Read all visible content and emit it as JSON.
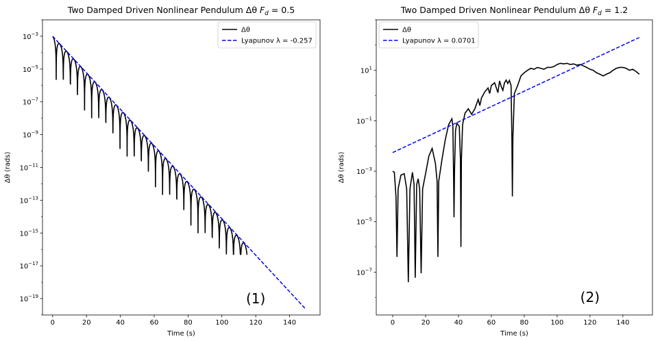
{
  "chart_data": [
    {
      "type": "line",
      "title": "Two Damped Driven Nonlinear Pendulum Δθ F_d = 0.5",
      "title_parts": {
        "main": "Two Damped Driven Nonlinear Pendulum Δθ ",
        "var": "F",
        "sub": "d",
        "rest": " = 0.5"
      },
      "xlabel": "Time (s)",
      "ylabel": "Δθ (rads)",
      "yscale": "log",
      "xlim": [
        -6,
        158
      ],
      "ylim": [
        1e-20,
        0.01
      ],
      "xticks": [
        0,
        20,
        40,
        60,
        80,
        100,
        120,
        140
      ],
      "yticks_exp": [
        -3,
        -5,
        -7,
        -9,
        -11,
        -13,
        -15,
        -17,
        -19
      ],
      "grid": false,
      "legend_position": "top-right",
      "panel_label": "(1)",
      "series": [
        {
          "name": "Δθ",
          "color": "#000000",
          "style": "solid",
          "kind": "damped",
          "start": [
            0,
            0.001
          ],
          "lyap": -0.257,
          "period": 4.19,
          "end_x": 115,
          "floor": 5e-17
        },
        {
          "name": "Lyapunov λ = -0.257",
          "color": "#0000ff",
          "style": "dashed",
          "x": [
            0,
            149
          ],
          "y": [
            0.001,
            2.6e-20
          ]
        }
      ]
    },
    {
      "type": "line",
      "title": "Two Damped Driven Nonlinear Pendulum Δθ F_d = 1.2",
      "title_parts": {
        "main": "Two Damped Driven Nonlinear Pendulum Δθ ",
        "var": "F",
        "sub": "d",
        "rest": " = 1.2"
      },
      "xlabel": "Time (s)",
      "ylabel": "Δθ (rads)",
      "yscale": "log",
      "xlim": [
        -10,
        158
      ],
      "ylim": [
        2e-09,
        1000
      ],
      "xticks": [
        0,
        20,
        40,
        60,
        80,
        100,
        120,
        140
      ],
      "yticks_exp": [
        1,
        -1,
        -3,
        -5,
        -7
      ],
      "grid": false,
      "legend_position": "top-left",
      "panel_label": "(2)",
      "series": [
        {
          "name": "Δθ",
          "color": "#000000",
          "style": "solid",
          "kind": "points",
          "points": [
            [
              0,
              0.001
            ],
            [
              1,
              0.0009
            ],
            [
              2,
              0.0001
            ],
            [
              2.6,
              4e-07
            ],
            [
              3.3,
              0.0002
            ],
            [
              5,
              0.0007
            ],
            [
              7,
              0.0008
            ],
            [
              8.5,
              0.0002
            ],
            [
              9.5,
              4e-08
            ],
            [
              10.5,
              0.0002
            ],
            [
              12,
              0.0009
            ],
            [
              13,
              0.0003
            ],
            [
              13.7,
              6e-08
            ],
            [
              14.6,
              0.0003
            ],
            [
              15.5,
              0.0005
            ],
            [
              16.4,
              0.0002
            ],
            [
              17.3,
              9e-08
            ],
            [
              18.2,
              0.0002
            ],
            [
              20,
              0.0008
            ],
            [
              22,
              0.004
            ],
            [
              24,
              0.008
            ],
            [
              26,
              0.002
            ],
            [
              27,
              0.0004
            ],
            [
              27.5,
              4e-07
            ],
            [
              28,
              0.0004
            ],
            [
              30,
              0.003
            ],
            [
              32,
              0.018
            ],
            [
              34,
              0.07
            ],
            [
              36,
              0.12
            ],
            [
              36.6,
              0.06
            ],
            [
              37,
              0.001
            ],
            [
              37.3,
              1.5e-05
            ],
            [
              37.6,
              0.001
            ],
            [
              38.2,
              0.04
            ],
            [
              39,
              0.08
            ],
            [
              40.5,
              0.06
            ],
            [
              41.2,
              0.003
            ],
            [
              41.5,
              1e-06
            ],
            [
              41.8,
              0.003
            ],
            [
              42.5,
              0.07
            ],
            [
              44,
              0.2
            ],
            [
              46,
              0.3
            ],
            [
              48,
              0.18
            ],
            [
              50,
              0.3
            ],
            [
              52,
              0.7
            ],
            [
              53,
              0.4
            ],
            [
              54,
              0.8
            ],
            [
              56,
              1.4
            ],
            [
              58,
              2
            ],
            [
              59,
              1.2
            ],
            [
              60,
              2.5
            ],
            [
              62,
              3.2
            ],
            [
              64,
              1.3
            ],
            [
              65,
              3.8
            ],
            [
              66,
              2.3
            ],
            [
              67,
              1.6
            ],
            [
              68,
              3.2
            ],
            [
              69,
              4.1
            ],
            [
              70,
              3
            ],
            [
              71,
              4
            ],
            [
              72,
              2.5
            ],
            [
              72.5,
              0.02
            ],
            [
              72.8,
              0.0001
            ],
            [
              73.1,
              0.02
            ],
            [
              74,
              1.2
            ],
            [
              76,
              2.5
            ],
            [
              78,
              6
            ],
            [
              80,
              8
            ],
            [
              82,
              10
            ],
            [
              84,
              12
            ],
            [
              86,
              11
            ],
            [
              88,
              13
            ],
            [
              90,
              12
            ],
            [
              92,
              11
            ],
            [
              94,
              13
            ],
            [
              96,
              13
            ],
            [
              98,
              14
            ],
            [
              100,
              17
            ],
            [
              102,
              19
            ],
            [
              104,
              18
            ],
            [
              106,
              19
            ],
            [
              108,
              17
            ],
            [
              110,
              18
            ],
            [
              112,
              16
            ],
            [
              114,
              17
            ],
            [
              116,
              15
            ],
            [
              118,
              13
            ],
            [
              120,
              11
            ],
            [
              122,
              10
            ],
            [
              124,
              8
            ],
            [
              126,
              7
            ],
            [
              128,
              6
            ],
            [
              130,
              7
            ],
            [
              132,
              8
            ],
            [
              134,
              10
            ],
            [
              136,
              12
            ],
            [
              138,
              13
            ],
            [
              140,
              13
            ],
            [
              142,
              12
            ],
            [
              144,
              10
            ],
            [
              146,
              11
            ],
            [
              148,
              9
            ],
            [
              150,
              7
            ]
          ]
        },
        {
          "name": "Lyapunov λ = 0.0701",
          "color": "#0000ff",
          "style": "dashed",
          "x": [
            0,
            150
          ],
          "y": [
            0.0055,
            200
          ]
        }
      ]
    }
  ]
}
